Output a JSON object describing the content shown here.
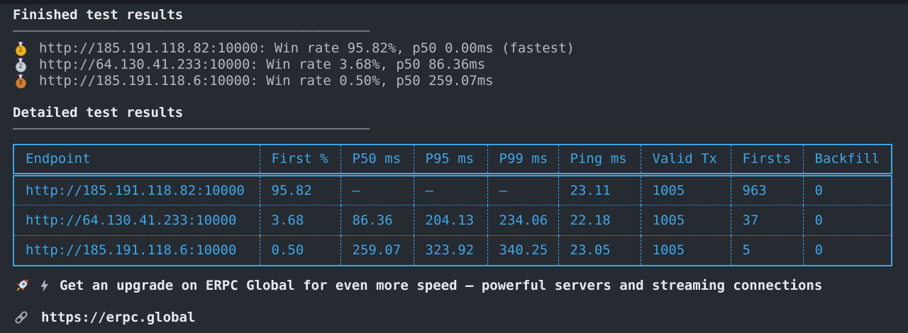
{
  "colors": {
    "bg": "#262a31",
    "accent_cyan": "#3ea6e6",
    "text_gray": "#b3b9c2",
    "text_white": "#e7eaee"
  },
  "finished_heading": "Finished test results",
  "detailed_heading": "Detailed test results",
  "separator": "––––––––––––––––––––––––––––––––––––––––––––",
  "summary": [
    {
      "medal_number": "1",
      "text": "http://185.191.118.82:10000: Win rate 95.82%, p50 0.00ms (fastest)"
    },
    {
      "medal_number": "2",
      "text": "http://64.130.41.233:10000: Win rate 3.68%, p50 86.36ms"
    },
    {
      "medal_number": "3",
      "text": "http://185.191.118.6:10000: Win rate 0.50%, p50 259.07ms"
    }
  ],
  "table": {
    "columns": [
      "Endpoint",
      "First %",
      "P50 ms",
      "P95 ms",
      "P99 ms",
      "Ping ms",
      "Valid Tx",
      "Firsts",
      "Backfill"
    ],
    "rows": [
      [
        "http://185.191.118.82:10000",
        "95.82",
        "–",
        "–",
        "–",
        "23.11",
        "1005",
        "963",
        "0"
      ],
      [
        "http://64.130.41.233:10000",
        "3.68",
        "86.36",
        "204.13",
        "234.06",
        "22.18",
        "1005",
        "37",
        "0"
      ],
      [
        "http://185.191.118.6:10000",
        "0.50",
        "259.07",
        "323.92",
        "340.25",
        "23.05",
        "1005",
        "5",
        "0"
      ]
    ]
  },
  "promo": "Get an upgrade on ERPC Global for even more speed — powerful servers and streaming connections",
  "link": "https://erpc.global"
}
